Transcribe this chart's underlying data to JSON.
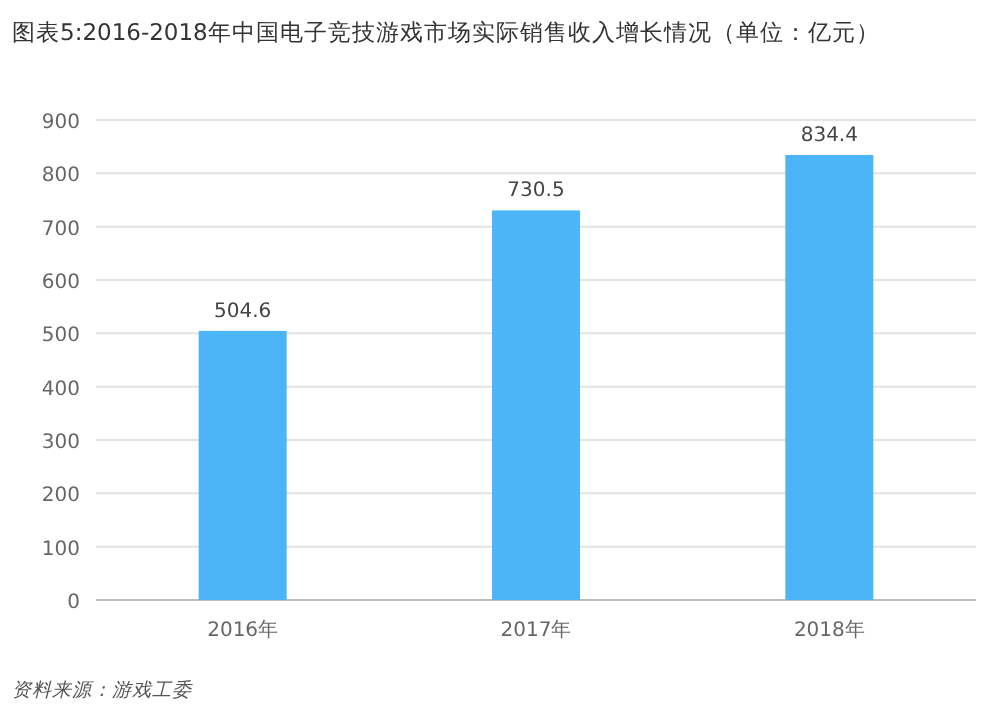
{
  "chart_data": {
    "type": "bar",
    "title": "图表5:2016-2018年中国电子竞技游戏市场实际销售收入增长情况（单位：亿元）",
    "categories": [
      "2016年",
      "2017年",
      "2018年"
    ],
    "values": [
      504.6,
      730.5,
      834.4
    ],
    "color": "#4bb5f7",
    "ylim": [
      0,
      900
    ],
    "yticks": [
      0,
      100,
      200,
      300,
      400,
      500,
      600,
      700,
      800,
      900
    ],
    "grid": "y",
    "data_labels": true,
    "annotations": [
      "资料来源：游戏工委"
    ]
  }
}
